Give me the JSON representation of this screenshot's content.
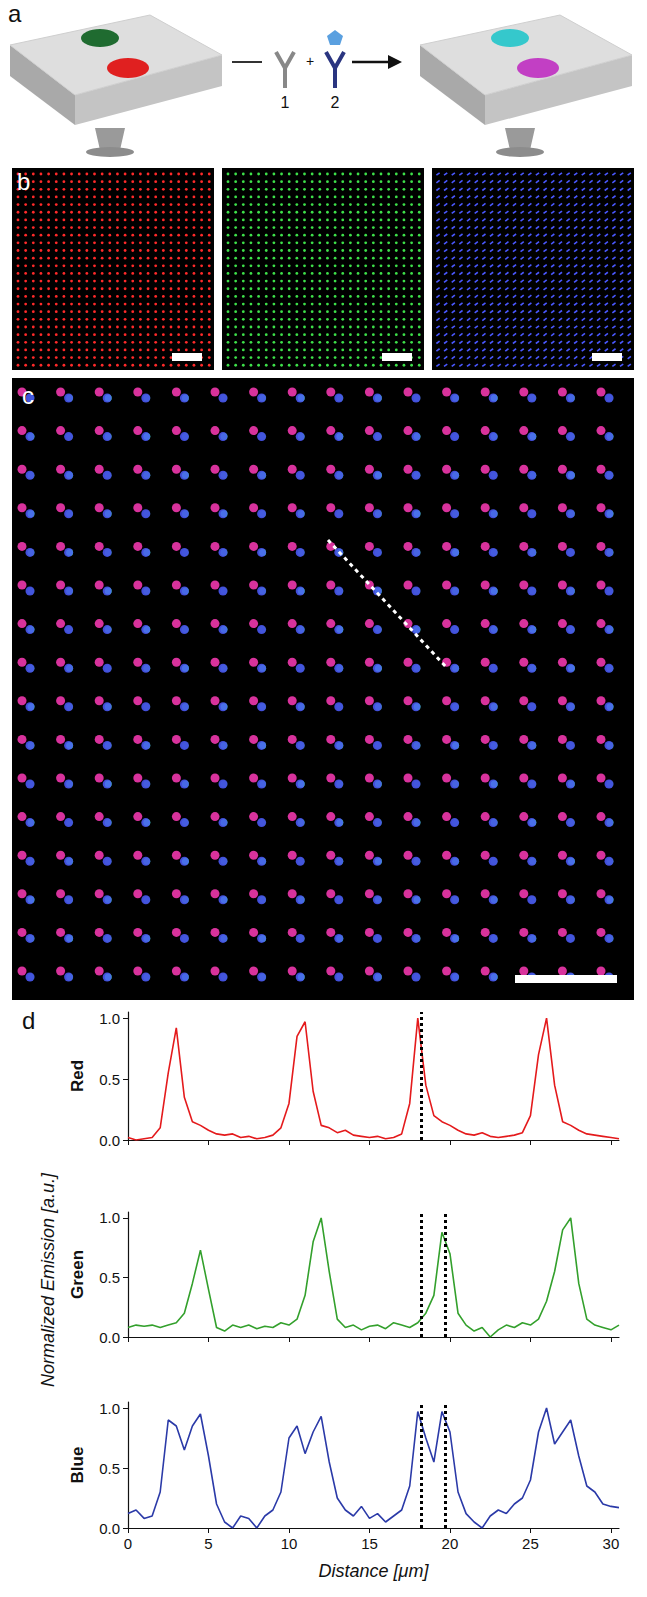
{
  "panel_labels": [
    "a",
    "b",
    "c",
    "d"
  ],
  "schematic": {
    "antibody_1": "1",
    "plus": "+",
    "antibody_2": "2"
  },
  "shared_ylabel": "Normalized Emission [a.u.]",
  "chart_data": [
    {
      "type": "line",
      "ylabel": "Red",
      "color": "#e41a1c",
      "x": [
        0,
        0.5,
        1,
        1.5,
        2,
        2.5,
        3,
        3.5,
        4,
        4.5,
        5,
        5.5,
        6,
        6.5,
        7,
        7.5,
        8,
        8.5,
        9,
        9.5,
        10,
        10.5,
        11,
        11.5,
        12,
        12.5,
        13,
        13.5,
        14,
        14.5,
        15,
        15.5,
        16,
        16.5,
        17,
        17.5,
        18,
        18.5,
        19,
        19.5,
        20,
        20.5,
        21,
        21.5,
        22,
        22.5,
        23,
        23.5,
        24,
        24.5,
        25,
        25.5,
        26,
        26.5,
        27,
        27.5,
        28,
        28.5,
        29,
        29.5,
        30,
        30.5
      ],
      "values": [
        0.02,
        0.0,
        0.01,
        0.02,
        0.1,
        0.55,
        0.92,
        0.35,
        0.15,
        0.12,
        0.08,
        0.05,
        0.04,
        0.05,
        0.02,
        0.03,
        0.01,
        0.02,
        0.04,
        0.1,
        0.3,
        0.85,
        0.97,
        0.4,
        0.12,
        0.1,
        0.06,
        0.08,
        0.04,
        0.03,
        0.02,
        0.03,
        0.01,
        0.02,
        0.05,
        0.3,
        1.0,
        0.45,
        0.2,
        0.15,
        0.12,
        0.08,
        0.05,
        0.04,
        0.06,
        0.03,
        0.02,
        0.03,
        0.04,
        0.06,
        0.2,
        0.7,
        1.0,
        0.45,
        0.15,
        0.12,
        0.08,
        0.05,
        0.04,
        0.03,
        0.02,
        0.01
      ],
      "xlim": [
        0,
        30.5
      ],
      "xticks": [
        0,
        5,
        10,
        15,
        20,
        25,
        30
      ],
      "ylim": [
        0,
        1.05
      ],
      "yticks": [
        {
          "value": 0,
          "label": "0.0"
        },
        {
          "value": 0.5,
          "label": "0.5"
        },
        {
          "value": 1,
          "label": "1.0"
        }
      ],
      "grid": false,
      "tick_labels": "y",
      "vlines": [
        18.2
      ]
    },
    {
      "type": "line",
      "ylabel": "Green",
      "color": "#33a02c",
      "x": [
        0,
        0.5,
        1,
        1.5,
        2,
        2.5,
        3,
        3.5,
        4,
        4.5,
        5,
        5.5,
        6,
        6.5,
        7,
        7.5,
        8,
        8.5,
        9,
        9.5,
        10,
        10.5,
        11,
        11.5,
        12,
        12.5,
        13,
        13.5,
        14,
        14.5,
        15,
        15.5,
        16,
        16.5,
        17,
        17.5,
        18,
        18.5,
        19,
        19.5,
        20,
        20.5,
        21,
        21.5,
        22,
        22.5,
        23,
        23.5,
        24,
        24.5,
        25,
        25.5,
        26,
        26.5,
        27,
        27.5,
        28,
        28.5,
        29,
        29.5,
        30,
        30.5
      ],
      "values": [
        0.08,
        0.1,
        0.09,
        0.1,
        0.08,
        0.1,
        0.12,
        0.2,
        0.45,
        0.73,
        0.4,
        0.08,
        0.05,
        0.1,
        0.08,
        0.1,
        0.07,
        0.09,
        0.08,
        0.12,
        0.1,
        0.15,
        0.35,
        0.8,
        1.0,
        0.55,
        0.15,
        0.08,
        0.1,
        0.06,
        0.09,
        0.1,
        0.07,
        0.12,
        0.1,
        0.08,
        0.12,
        0.2,
        0.35,
        0.88,
        0.7,
        0.2,
        0.1,
        0.05,
        0.08,
        0.0,
        0.06,
        0.1,
        0.08,
        0.12,
        0.1,
        0.15,
        0.3,
        0.55,
        0.9,
        1.0,
        0.45,
        0.15,
        0.1,
        0.08,
        0.06,
        0.1
      ],
      "xlim": [
        0,
        30.5
      ],
      "xticks": [
        0,
        5,
        10,
        15,
        20,
        25,
        30
      ],
      "ylim": [
        0,
        1.05
      ],
      "yticks": [
        {
          "value": 0,
          "label": "0.0"
        },
        {
          "value": 0.5,
          "label": "0.5"
        },
        {
          "value": 1,
          "label": "1.0"
        }
      ],
      "grid": false,
      "tick_labels": "y",
      "vlines": [
        18.2,
        19.7
      ]
    },
    {
      "type": "line",
      "ylabel": "Blue",
      "xlabel": "Distance [μm]",
      "color": "#2b3aa8",
      "x": [
        0,
        0.5,
        1,
        1.5,
        2,
        2.5,
        3,
        3.5,
        4,
        4.5,
        5,
        5.5,
        6,
        6.5,
        7,
        7.5,
        8,
        8.5,
        9,
        9.5,
        10,
        10.5,
        11,
        11.5,
        12,
        12.5,
        13,
        13.5,
        14,
        14.5,
        15,
        15.5,
        16,
        16.5,
        17,
        17.5,
        18,
        18.5,
        19,
        19.5,
        20,
        20.5,
        21,
        21.5,
        22,
        22.5,
        23,
        23.5,
        24,
        24.5,
        25,
        25.5,
        26,
        26.5,
        27,
        27.5,
        28,
        28.5,
        29,
        29.5,
        30,
        30.5
      ],
      "values": [
        0.12,
        0.15,
        0.08,
        0.1,
        0.3,
        0.9,
        0.85,
        0.65,
        0.85,
        0.95,
        0.6,
        0.2,
        0.05,
        0.0,
        0.1,
        0.08,
        0.0,
        0.1,
        0.15,
        0.3,
        0.75,
        0.85,
        0.62,
        0.8,
        0.93,
        0.55,
        0.25,
        0.15,
        0.1,
        0.18,
        0.08,
        0.12,
        0.05,
        0.1,
        0.15,
        0.35,
        0.97,
        0.75,
        0.55,
        0.97,
        0.8,
        0.3,
        0.12,
        0.05,
        0.0,
        0.1,
        0.15,
        0.12,
        0.2,
        0.25,
        0.4,
        0.8,
        1.0,
        0.7,
        0.8,
        0.9,
        0.6,
        0.35,
        0.3,
        0.2,
        0.18,
        0.17
      ],
      "xlim": [
        0,
        30.5
      ],
      "xticks": [
        0,
        5,
        10,
        15,
        20,
        25,
        30
      ],
      "ylim": [
        0,
        1.05
      ],
      "yticks": [
        {
          "value": 0,
          "label": "0.0"
        },
        {
          "value": 0.5,
          "label": "0.5"
        },
        {
          "value": 1,
          "label": "1.0"
        }
      ],
      "grid": false,
      "vlines": [
        18.2,
        19.7
      ]
    }
  ]
}
